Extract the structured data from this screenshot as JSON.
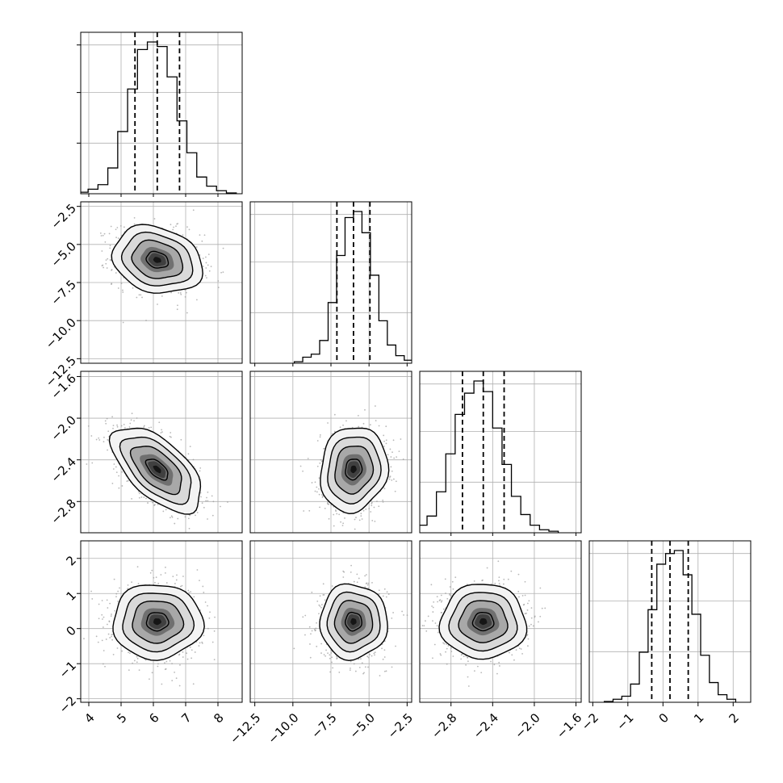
{
  "chart_data": {
    "type": "corner",
    "title": "",
    "grid": true,
    "params": [
      {
        "range": [
          3.75,
          8.75
        ],
        "ticks": [
          4,
          5,
          6,
          7,
          8
        ],
        "tick_labels": [
          "4",
          "5",
          "6",
          "7",
          "8"
        ],
        "mean": 6.12,
        "sd": 0.68,
        "quantiles": [
          5.43,
          6.12,
          6.81
        ]
      },
      {
        "range": [
          -12.8,
          -2.2
        ],
        "ticks": [
          -12.5,
          -10.0,
          -7.5,
          -5.0,
          -2.5
        ],
        "tick_labels": [
          "−12.5",
          "−10.0",
          "−7.5",
          "−5.0",
          "−2.5"
        ],
        "mean": -6.02,
        "sd": 1.08,
        "quantiles": [
          -7.11,
          -6.02,
          -4.94
        ]
      },
      {
        "range": [
          -3.1,
          -1.55
        ],
        "ticks": [
          -2.8,
          -2.4,
          -2.0,
          -1.6
        ],
        "tick_labels": [
          "−2.8",
          "−2.4",
          "−2.0",
          "−1.6"
        ],
        "mean": -2.49,
        "sd": 0.2,
        "quantiles": [
          -2.69,
          -2.49,
          -2.29
        ]
      },
      {
        "range": [
          -2.1,
          2.5
        ],
        "ticks": [
          -2,
          -1,
          0,
          1,
          2
        ],
        "tick_labels": [
          "−2",
          "−1",
          "0",
          "1",
          "2"
        ],
        "mean": 0.2,
        "sd": 0.52,
        "quantiles": [
          -0.32,
          0.2,
          0.72
        ]
      }
    ],
    "correlations": [
      [
        1.0,
        -0.2,
        -0.6,
        0.0
      ],
      [
        -0.2,
        1.0,
        0.1,
        0.0
      ],
      [
        -0.6,
        0.1,
        1.0,
        0.0
      ],
      [
        0.0,
        0.0,
        0.0,
        1.0
      ]
    ],
    "histograms": [
      [
        0.01,
        0.03,
        0.06,
        0.17,
        0.41,
        0.69,
        0.95,
        1.0,
        0.97,
        0.77,
        0.48,
        0.27,
        0.11,
        0.05,
        0.02,
        0.005
      ],
      [
        0.01,
        0.04,
        0.06,
        0.15,
        0.4,
        0.71,
        0.96,
        1.0,
        0.86,
        0.58,
        0.28,
        0.12,
        0.05,
        0.02
      ],
      [
        0.02,
        0.05,
        0.11,
        0.27,
        0.52,
        0.78,
        0.92,
        1.0,
        0.93,
        0.69,
        0.45,
        0.24,
        0.12,
        0.05,
        0.02,
        0.01
      ],
      [
        0.005,
        0.02,
        0.04,
        0.12,
        0.33,
        0.61,
        0.91,
        0.98,
        1.0,
        0.84,
        0.58,
        0.31,
        0.13,
        0.05,
        0.02
      ]
    ]
  }
}
